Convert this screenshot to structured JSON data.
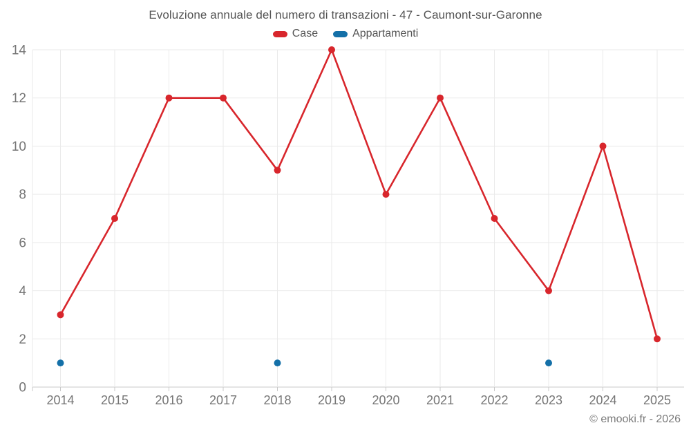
{
  "footer": {
    "credit": "© emooki.fr - 2026"
  },
  "chart_data": {
    "type": "line",
    "title": "Evoluzione annuale del numero di transazioni - 47 - Caumont-sur-Garonne",
    "categories": [
      "2014",
      "2015",
      "2016",
      "2017",
      "2018",
      "2019",
      "2020",
      "2021",
      "2022",
      "2023",
      "2024",
      "2025"
    ],
    "series": [
      {
        "name": "Case",
        "color": "#d8262c",
        "values": [
          3,
          7,
          12,
          12,
          9,
          14,
          8,
          12,
          7,
          4,
          10,
          2
        ]
      },
      {
        "name": "Appartamenti",
        "color": "#1470a8",
        "values": [
          1,
          null,
          null,
          null,
          1,
          null,
          null,
          null,
          null,
          1,
          null,
          null
        ]
      }
    ],
    "xlabel": "",
    "ylabel": "",
    "ylim": [
      0,
      14
    ],
    "yticks": [
      0,
      2,
      4,
      6,
      8,
      10,
      12,
      14
    ],
    "grid": true,
    "legend_position": "top",
    "grid_color": "#eaeaea",
    "axis_color": "#c8c8c8",
    "tick_label_color": "#757575"
  }
}
